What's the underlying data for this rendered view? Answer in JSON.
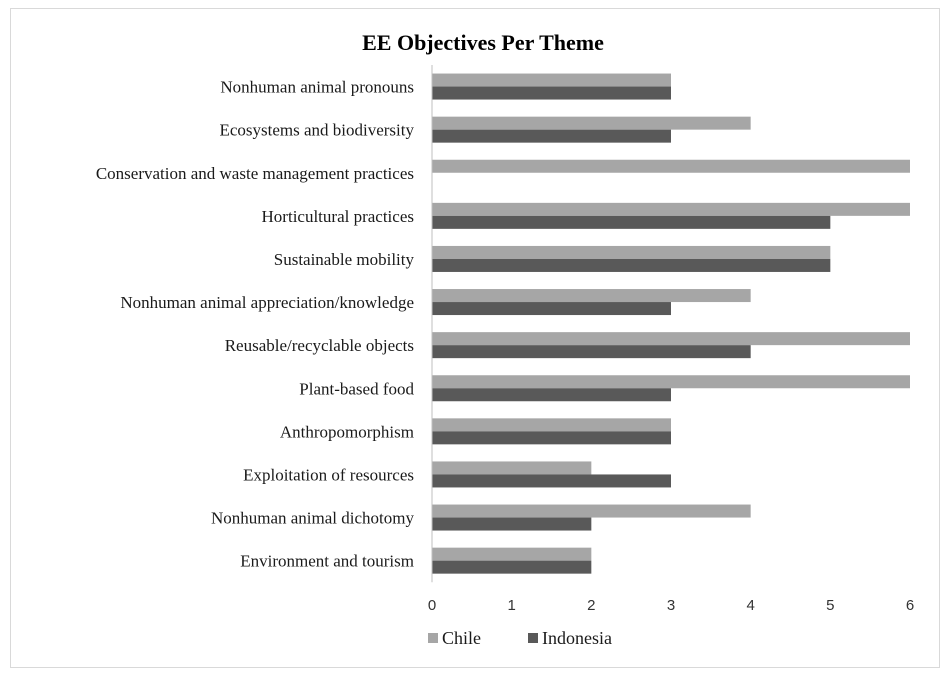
{
  "chart_data": {
    "type": "bar",
    "orientation": "horizontal",
    "title": "EE Objectives Per Theme",
    "xlabel": "",
    "ylabel": "",
    "xlim": [
      0,
      6
    ],
    "ticks": [
      0,
      1,
      2,
      3,
      4,
      5,
      6
    ],
    "grid": false,
    "legend_position": "bottom-left",
    "categories": [
      "Nonhuman animal pronouns",
      "Ecosystems and biodiversity",
      "Conservation and waste management practices",
      "Horticultural practices",
      "Sustainable mobility",
      "Nonhuman animal appreciation/knowledge",
      "Reusable/recyclable objects",
      "Plant-based food",
      "Anthropomorphism",
      "Exploitation of resources",
      "Nonhuman animal dichotomy",
      "Environment and tourism"
    ],
    "series": [
      {
        "name": "Chile",
        "color": "#a6a6a6",
        "values": [
          3,
          4,
          6,
          6,
          5,
          4,
          6,
          6,
          3,
          2,
          4,
          2
        ]
      },
      {
        "name": "Indonesia",
        "color": "#595959",
        "values": [
          3,
          3,
          0,
          5,
          5,
          3,
          4,
          3,
          3,
          3,
          2,
          2
        ]
      }
    ]
  }
}
